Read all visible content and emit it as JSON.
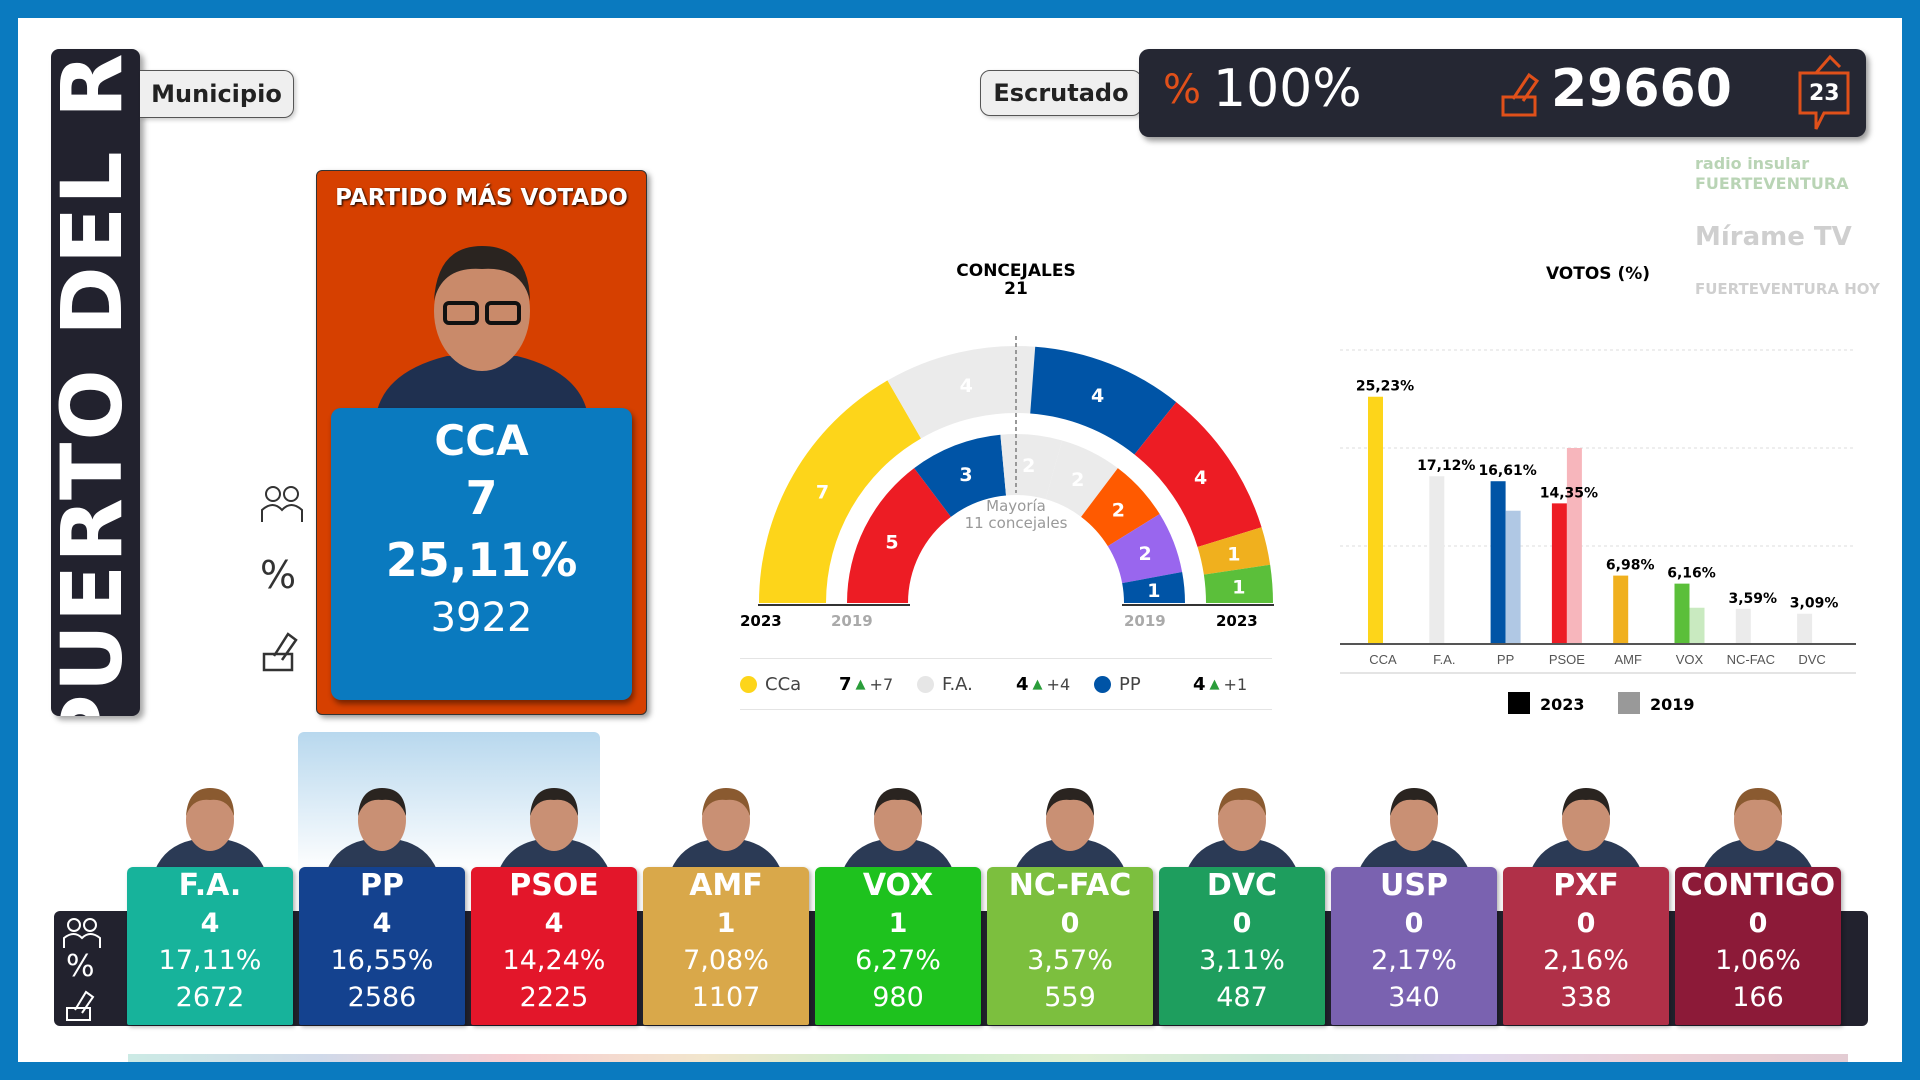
{
  "municipality": {
    "name": "PUERTO DEL RO",
    "label": "Municipio"
  },
  "scrutiny": {
    "label": "Escrutado",
    "percent_symbol": "%",
    "percent": "100%",
    "votes": "29660",
    "badge": "23"
  },
  "logos": [
    "radio insular FUERTEVENTURA",
    "Mírame TV",
    "FUERTEVENTURA HOY"
  ],
  "top_party": {
    "heading": "PARTIDO MÁS VOTADO",
    "name": "CCA",
    "seats": "7",
    "percent": "25,11%",
    "votes": "3922",
    "color": "#0a7abf"
  },
  "row_icons": {
    "seats": "councillors-icon",
    "percent": "%",
    "votes": "ballot-icon"
  },
  "hemicycle": {
    "title": "CONCEJALES",
    "total": "21",
    "majority_line1": "Mayoría",
    "majority_line2": "11 concejales",
    "year_outer": "2023",
    "year_inner": "2019",
    "outer": [
      {
        "seats": 7,
        "color": "#fdd51a"
      },
      {
        "seats": 4,
        "color": "#ebebeb"
      },
      {
        "seats": 4,
        "color": "#0054a6"
      },
      {
        "seats": 4,
        "color": "#ed1c24"
      },
      {
        "seats": 1,
        "color": "#f0b01e"
      },
      {
        "seats": 1,
        "color": "#5bbf3a"
      }
    ],
    "inner": [
      {
        "seats": 5,
        "color": "#ed1c24"
      },
      {
        "seats": 3,
        "color": "#0054a6"
      },
      {
        "seats": 2,
        "color": "#ebebeb"
      },
      {
        "seats": 2,
        "color": "#ebebeb"
      },
      {
        "seats": 2,
        "color": "#ff5a00"
      },
      {
        "seats": 2,
        "color": "#9966ee"
      },
      {
        "seats": 1,
        "color": "#0054a6"
      }
    ],
    "legend": [
      {
        "party": "CCa",
        "color": "#fdd51a",
        "seats": "7",
        "change": "+7"
      },
      {
        "party": "F.A.",
        "color": "#e6e6e6",
        "seats": "4",
        "change": "+4"
      },
      {
        "party": "PP",
        "color": "#0054a6",
        "seats": "4",
        "change": "+1"
      }
    ]
  },
  "chart_data": {
    "type": "bar",
    "title": "VOTOS (%)",
    "categories": [
      "CCA",
      "F.A.",
      "PP",
      "PSOE",
      "AMF",
      "VOX",
      "NC-FAC",
      "DVC"
    ],
    "series": [
      {
        "name": "2023",
        "values": [
          25.23,
          17.12,
          16.61,
          14.35,
          6.98,
          6.16,
          3.59,
          3.09
        ],
        "labels": [
          "25,23%",
          "17,12%",
          "16,61%",
          "14,35%",
          "6,98%",
          "6,16%",
          "3,59%",
          "3,09%"
        ],
        "colors": [
          "#fdd51a",
          "#ebebeb",
          "#0054a6",
          "#ed1c24",
          "#f0b01e",
          "#5bbf3a",
          "#ebebeb",
          "#ebebeb"
        ]
      },
      {
        "name": "2019",
        "values": [
          null,
          null,
          13.6,
          20,
          null,
          3.7,
          null,
          null
        ],
        "colors": [
          null,
          null,
          "#b0c8e4",
          "#f7b6bc",
          null,
          "#c9eac0",
          null,
          null
        ]
      }
    ],
    "ylim": [
      0,
      30
    ],
    "grid": true,
    "legend": "bottom",
    "legend_colors": [
      "#000000",
      "#999999"
    ]
  },
  "parties": [
    {
      "name": "F.A.",
      "seats": "4",
      "percent": "17,11%",
      "votes": "2672",
      "color": "#17b39b"
    },
    {
      "name": "PP",
      "seats": "4",
      "percent": "16,55%",
      "votes": "2586",
      "color": "#14428f"
    },
    {
      "name": "PSOE",
      "seats": "4",
      "percent": "14,24%",
      "votes": "2225",
      "color": "#e3162a"
    },
    {
      "name": "AMF",
      "seats": "1",
      "percent": "7,08%",
      "votes": "1107",
      "color": "#d9a84a"
    },
    {
      "name": "VOX",
      "seats": "1",
      "percent": "6,27%",
      "votes": "980",
      "color": "#1ec21e"
    },
    {
      "name": "NC-FAC",
      "seats": "0",
      "percent": "3,57%",
      "votes": "559",
      "color": "#7cbf3e"
    },
    {
      "name": "DVC",
      "seats": "0",
      "percent": "3,11%",
      "votes": "487",
      "color": "#1e9e5e"
    },
    {
      "name": "USP",
      "seats": "0",
      "percent": "2,17%",
      "votes": "340",
      "color": "#7a62b0"
    },
    {
      "name": "PXF",
      "seats": "0",
      "percent": "2,16%",
      "votes": "338",
      "color": "#b03048"
    },
    {
      "name": "CONTIGO",
      "seats": "0",
      "percent": "1,06%",
      "votes": "166",
      "color": "#8c1a38"
    }
  ]
}
